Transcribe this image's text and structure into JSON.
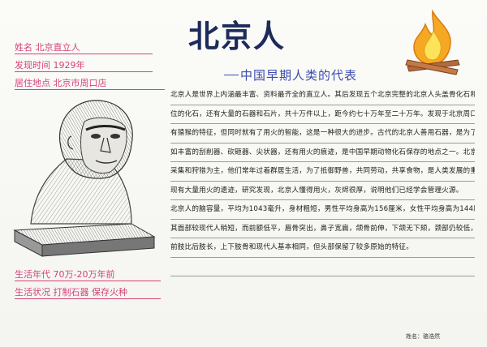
{
  "title": "北京人",
  "subtitle": "中国早期人类的代表",
  "info_top": [
    "姓名 北京直立人",
    "发现时间 1929年",
    "居住地点 北京市周口店"
  ],
  "info_bottom": [
    "生活年代 70万-20万年前",
    "生活状况 打制石器 保存火种"
  ],
  "body_lines": [
    "北京人是世界上内涵最丰富、资料最齐全的直立人。其后发现五个北京完整的北京人头盖骨化石和一些其他部",
    "位的化石，还有大量的石器和石片，共十万件以上，距今约七十万年至二十万年。发现于北京周口店，保留了褪",
    "有猿猴的特征，但同时就有了用火的智能，这是一种很大的进步。古代的北京人善用石器，是为了制造劳动工具，",
    "如丰富的刮削器、砍砸器、尖状器，还有用火的痕迹，是中国早期动物化石保存的地点之一。北京人的生活方式以",
    "采集和狩猎为主，他们常年过着群居生活，为了抵御野兽，共同劳动，共享食物，是人类发展的重要阶段，发",
    "现有大量用火的遗迹，研究发现，北京人懂得用火，灰烬很厚，说明他们已经学会管理火源。",
    "北京人的脑容量，平均为1043毫升，身材粗短，男性平均身高为156厘米，女性平均身高为144厘米，",
    "其面部较现代人稍短，而前额低平，眉骨突出，鼻子宽扁，颌骨前伸，下颌无下颏，颈部仍较低，牙齿粗大，",
    "前肢比后肢长，上下肢骨和现代人基本相同，但头部保留了较多原始的特征。"
  ],
  "signature": "姓名：骆浩然",
  "colors": {
    "title": "#1d2a5a",
    "subtitle": "#3b4cb0",
    "info": "#d3447a",
    "text": "#222222"
  }
}
